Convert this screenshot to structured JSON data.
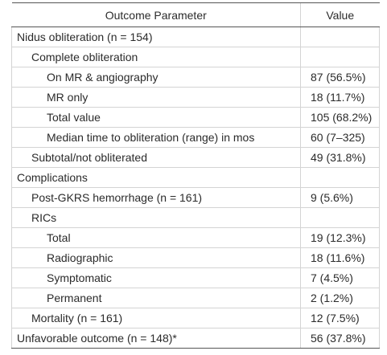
{
  "table": {
    "header": [
      "Outcome Parameter",
      "Value"
    ],
    "rows": [
      [
        "Nidus obliteration (n = 154)"
      ],
      [
        "Complete obliteration"
      ],
      [
        "On MR & angiography",
        "87 (56.5%)"
      ],
      [
        "MR only",
        "18 (11.7%)"
      ],
      [
        "Total value",
        "105 (68.2%)"
      ],
      [
        "Median time to obliteration (range) in mos",
        "60 (7–325)"
      ],
      [
        "Subtotal/not obliterated",
        "49 (31.8%)"
      ],
      [
        "Complications"
      ],
      [
        "Post-GKRS hemorrhage (n = 161)",
        "9 (5.6%)"
      ],
      [
        "RICs"
      ],
      [
        "Total",
        "19 (12.3%)"
      ],
      [
        "Radiographic",
        "18 (11.6%)"
      ],
      [
        "Symptomatic",
        "7 (4.5%)"
      ],
      [
        "Permanent",
        "2 (1.2%)"
      ],
      [
        "Mortality (n = 161)",
        "12 (7.5%)"
      ],
      [
        "Unfavorable outcome (n = 148)*",
        "56 (37.8%)"
      ]
    ]
  }
}
